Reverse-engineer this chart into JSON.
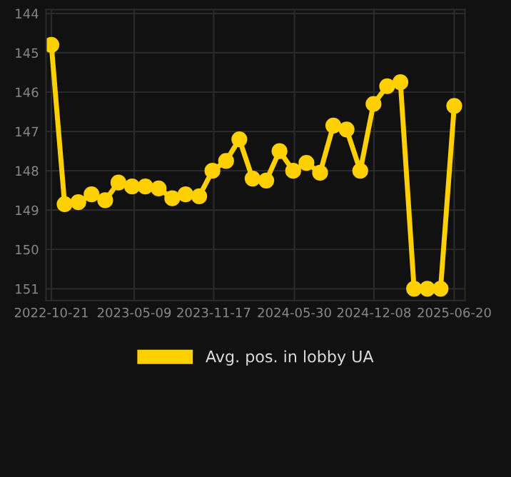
{
  "chart_data": {
    "type": "line",
    "x": [
      "2022-10-21",
      "2022-11-22",
      "2022-12-25",
      "2023-01-26",
      "2023-02-28",
      "2023-04-01",
      "2023-05-04",
      "2023-06-05",
      "2023-07-07",
      "2023-08-09",
      "2023-09-10",
      "2023-10-13",
      "2023-11-14",
      "2023-12-17",
      "2024-01-18",
      "2024-02-19",
      "2024-03-23",
      "2024-04-24",
      "2024-05-27",
      "2024-06-28",
      "2024-07-31",
      "2024-09-01",
      "2024-10-03",
      "2024-11-05",
      "2024-12-07",
      "2025-01-09",
      "2025-02-10",
      "2025-03-15",
      "2025-04-16",
      "2025-05-18",
      "2025-06-20"
    ],
    "series": [
      {
        "name": "Avg. pos. in lobby UA",
        "color": "#ffd000",
        "values": [
          144.8,
          148.85,
          148.8,
          148.6,
          148.75,
          148.3,
          148.4,
          148.4,
          148.45,
          148.7,
          148.6,
          148.65,
          148.0,
          147.75,
          147.2,
          148.2,
          148.25,
          147.5,
          148.0,
          147.8,
          148.05,
          146.85,
          146.95,
          148.0,
          146.3,
          145.85,
          145.75,
          151.0,
          151.0,
          151.0,
          146.35
        ]
      }
    ],
    "ylim": [
      151.3,
      143.9
    ],
    "yticks": [
      144,
      145,
      146,
      147,
      148,
      149,
      150,
      151
    ],
    "xlim": [
      "2022-10-08",
      "2025-07-16"
    ],
    "xticks": [
      "2022-10-21",
      "2023-05-09",
      "2023-11-17",
      "2024-05-30",
      "2024-12-08",
      "2025-06-20"
    ],
    "grid": true,
    "legend": "bottom",
    "marker": "circle",
    "line_style": "solid"
  }
}
